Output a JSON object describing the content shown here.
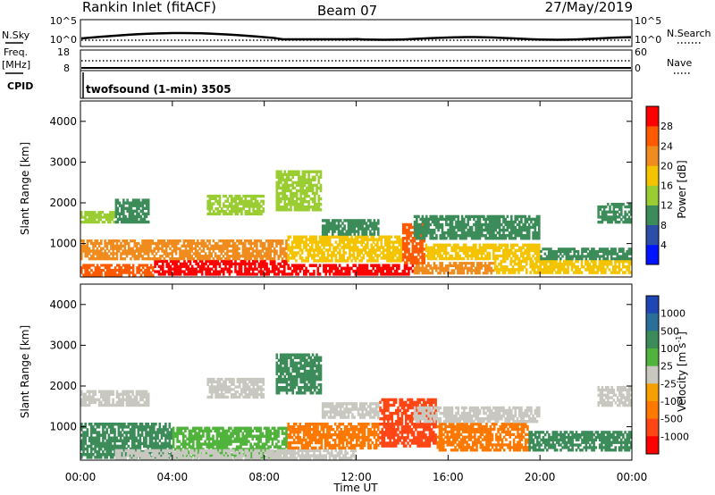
{
  "header": {
    "site": "Rankin Inlet (fitACF)",
    "beam": "Beam 07",
    "date": "27/May/2019"
  },
  "top_panels": {
    "nsky_label": "N.Sky",
    "nsky_ticks": [
      "10^5",
      "10^0"
    ],
    "nsearch_label": "N.Search",
    "nsearch_ticks": [
      "10^5",
      "10^0"
    ],
    "freq_label_line1": "Freq.",
    "freq_label_line2": "[MHz]",
    "freq_ticks": [
      "18",
      "8"
    ],
    "nave_label": "Nave",
    "nave_ticks": [
      "60",
      "0"
    ],
    "cpid_label": "CPID",
    "cpid_text": "twofsound (1-min) 3505"
  },
  "colors": {
    "power": [
      "#0014ff",
      "#2b4ea8",
      "#3c8c5a",
      "#9acd32",
      "#f5c400",
      "#f08c1e",
      "#ff5a00",
      "#ff0000"
    ],
    "velocity": [
      "#1e46b4",
      "#2a6e9a",
      "#3c8c5a",
      "#50b43c",
      "#c8c8c0",
      "#f5a000",
      "#ff7800",
      "#ff4614",
      "#ff0000"
    ]
  },
  "chart_data": [
    {
      "type": "heatmap",
      "name": "power",
      "ylabel": "Slant Range [km]",
      "xlabel": "",
      "y_ticks": [
        "1000",
        "2000",
        "3000",
        "4000"
      ],
      "ylim": [
        180,
        4500
      ],
      "x_hours": [
        0,
        24
      ],
      "colorbar_label": "Power [dB]",
      "colorbar_ticks": [
        "4",
        "8",
        "12",
        "16",
        "20",
        "24",
        "28"
      ],
      "bands": [
        {
          "t0": 0.0,
          "t1": 3.2,
          "r0": 200,
          "r1": 500,
          "value": 26
        },
        {
          "t0": 3.2,
          "t1": 9.0,
          "r0": 220,
          "r1": 600,
          "value": 29
        },
        {
          "t0": 9.0,
          "t1": 14.5,
          "r0": 220,
          "r1": 500,
          "value": 28
        },
        {
          "t0": 14.5,
          "t1": 18.0,
          "r0": 250,
          "r1": 550,
          "value": 22
        },
        {
          "t0": 18.0,
          "t1": 24.0,
          "r0": 260,
          "r1": 600,
          "value": 18
        },
        {
          "t0": 0.0,
          "t1": 9.0,
          "r0": 600,
          "r1": 1100,
          "value": 20
        },
        {
          "t0": 9.0,
          "t1": 14.0,
          "r0": 550,
          "r1": 1200,
          "value": 16
        },
        {
          "t0": 14.0,
          "t1": 15.0,
          "r0": 500,
          "r1": 1500,
          "value": 25
        },
        {
          "t0": 15.0,
          "t1": 20.0,
          "r0": 600,
          "r1": 1000,
          "value": 16
        },
        {
          "t0": 20.0,
          "t1": 24.0,
          "r0": 600,
          "r1": 900,
          "value": 10
        },
        {
          "t0": 0.0,
          "t1": 1.5,
          "r0": 1500,
          "r1": 1800,
          "value": 14
        },
        {
          "t0": 1.5,
          "t1": 3.0,
          "r0": 1500,
          "r1": 2100,
          "value": 10
        },
        {
          "t0": 5.5,
          "t1": 8.0,
          "r0": 1700,
          "r1": 2200,
          "value": 12
        },
        {
          "t0": 8.5,
          "t1": 10.5,
          "r0": 1800,
          "r1": 2800,
          "value": 14
        },
        {
          "t0": 10.5,
          "t1": 13.0,
          "r0": 1200,
          "r1": 1600,
          "value": 8
        },
        {
          "t0": 14.5,
          "t1": 20.0,
          "r0": 1100,
          "r1": 1700,
          "value": 8
        },
        {
          "t0": 22.5,
          "t1": 24.0,
          "r0": 1500,
          "r1": 2000,
          "value": 8
        }
      ]
    },
    {
      "type": "heatmap",
      "name": "velocity",
      "ylabel": "Slant Range [km]",
      "xlabel": "Time UT",
      "x_ticks": [
        "00:00",
        "04:00",
        "08:00",
        "12:00",
        "16:00",
        "20:00",
        "00:00"
      ],
      "y_ticks": [
        "1000",
        "2000",
        "3000",
        "4000"
      ],
      "ylim": [
        180,
        4500
      ],
      "x_hours": [
        0,
        24
      ],
      "colorbar_label": "Velocity [m s",
      "colorbar_sup": "-1",
      "colorbar_close": "]",
      "colorbar_ticks": [
        "1000",
        "500",
        "100",
        "25",
        "-25",
        "-100",
        "-500",
        "-1000"
      ],
      "bands": [
        {
          "t0": 0.0,
          "t1": 4.0,
          "r0": 220,
          "r1": 1100,
          "value": 150
        },
        {
          "t0": 4.0,
          "t1": 9.0,
          "r0": 220,
          "r1": 1000,
          "value": 80
        },
        {
          "t0": 1.5,
          "t1": 12.0,
          "r0": 200,
          "r1": 450,
          "value": 0
        },
        {
          "t0": 9.0,
          "t1": 13.0,
          "r0": 450,
          "r1": 1100,
          "value": -150
        },
        {
          "t0": 13.0,
          "t1": 15.5,
          "r0": 500,
          "r1": 1700,
          "value": -600
        },
        {
          "t0": 15.5,
          "t1": 19.5,
          "r0": 400,
          "r1": 1100,
          "value": -300
        },
        {
          "t0": 19.5,
          "t1": 24.0,
          "r0": 400,
          "r1": 900,
          "value": 120
        },
        {
          "t0": 0.0,
          "t1": 3.0,
          "r0": 1500,
          "r1": 1900,
          "value": 0
        },
        {
          "t0": 5.5,
          "t1": 8.0,
          "r0": 1700,
          "r1": 2200,
          "value": 0
        },
        {
          "t0": 8.5,
          "t1": 10.5,
          "r0": 1800,
          "r1": 2800,
          "value": 180
        },
        {
          "t0": 10.5,
          "t1": 13.0,
          "r0": 1200,
          "r1": 1600,
          "value": 0
        },
        {
          "t0": 14.5,
          "t1": 20.0,
          "r0": 1100,
          "r1": 1500,
          "value": 0
        },
        {
          "t0": 22.5,
          "t1": 24.0,
          "r0": 1500,
          "r1": 2000,
          "value": 0
        }
      ]
    }
  ]
}
